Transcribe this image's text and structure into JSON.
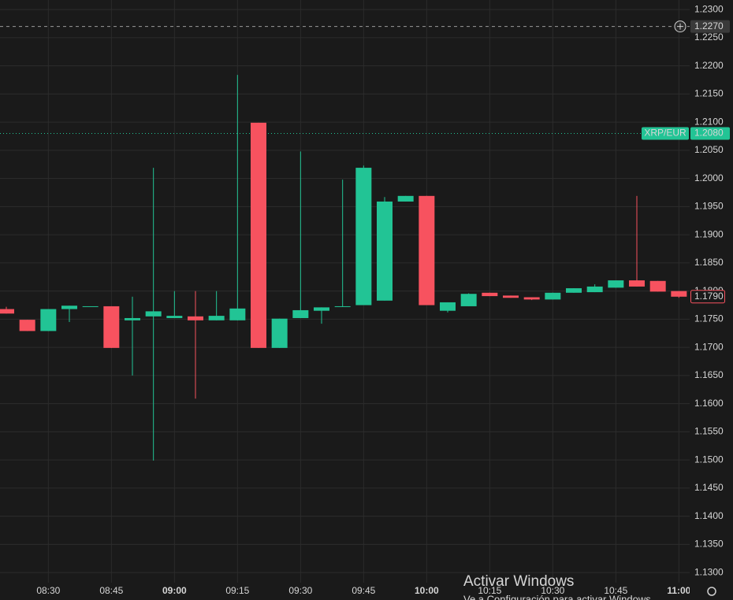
{
  "chart_data": {
    "type": "candlestick",
    "symbol": "XRP/EUR",
    "categories": [
      null,
      null,
      "08:30",
      null,
      null,
      "08:45",
      null,
      null,
      "09:00",
      null,
      null,
      "09:15",
      null,
      null,
      "09:30",
      null,
      null,
      "09:45",
      null,
      null,
      "10:00",
      null,
      null,
      "10:15",
      null,
      null,
      "10:30",
      null,
      null,
      "10:45",
      null,
      null,
      "11:00"
    ],
    "open": [
      1.1768,
      1.1749,
      1.1729,
      1.1768,
      1.1773,
      1.1773,
      1.1748,
      1.1755,
      1.1752,
      1.1755,
      1.1748,
      1.1748,
      1.2099,
      1.1699,
      1.1752,
      1.1765,
      1.1772,
      1.1775,
      1.1783,
      1.1959,
      1.1969,
      1.1765,
      1.1773,
      1.1797,
      1.1792,
      1.1789,
      1.1785,
      1.1797,
      1.1798,
      1.1806,
      1.1819,
      1.1818,
      1.18
    ],
    "high": [
      1.1772,
      1.1749,
      1.1768,
      1.1774,
      1.1773,
      1.1773,
      1.179,
      1.2019,
      1.18,
      1.18,
      1.18,
      1.2184,
      1.2099,
      1.1751,
      1.2048,
      1.1771,
      1.1998,
      1.2023,
      1.1967,
      1.1969,
      1.1969,
      1.178,
      1.1796,
      1.1797,
      1.1792,
      1.1789,
      1.1797,
      1.1805,
      1.1812,
      1.1819,
      1.1969,
      1.1818,
      1.18
    ],
    "low": [
      1.176,
      1.1729,
      1.1729,
      1.1745,
      1.1773,
      1.1699,
      1.165,
      1.1499,
      1.1752,
      1.1609,
      1.1748,
      1.1748,
      1.1699,
      1.1699,
      1.1752,
      1.1742,
      1.1772,
      1.1775,
      1.1783,
      1.1959,
      1.1775,
      1.1762,
      1.1773,
      1.1791,
      1.1788,
      1.1784,
      1.1785,
      1.1797,
      1.1798,
      1.1806,
      1.1808,
      1.1799,
      1.1788
    ],
    "close": [
      1.176,
      1.1729,
      1.1768,
      1.1774,
      1.1773,
      1.1699,
      1.1752,
      1.1764,
      1.1756,
      1.1748,
      1.1756,
      1.1769,
      1.1699,
      1.1751,
      1.1766,
      1.1771,
      1.1773,
      1.2019,
      1.1959,
      1.1969,
      1.1775,
      1.178,
      1.1795,
      1.1791,
      1.1788,
      1.1785,
      1.1797,
      1.1805,
      1.1808,
      1.1819,
      1.1808,
      1.1799,
      1.179
    ],
    "up_color": "#22c495",
    "down_color": "#f7525f",
    "ylim": [
      1.1282,
      1.2317
    ],
    "yticks": [
      {
        "value": 1.13,
        "label": "1.1300"
      },
      {
        "value": 1.135,
        "label": "1.1350"
      },
      {
        "value": 1.14,
        "label": "1.1400"
      },
      {
        "value": 1.145,
        "label": "1.1450"
      },
      {
        "value": 1.15,
        "label": "1.1500"
      },
      {
        "value": 1.155,
        "label": "1.1550"
      },
      {
        "value": 1.16,
        "label": "1.1600"
      },
      {
        "value": 1.165,
        "label": "1.1650"
      },
      {
        "value": 1.17,
        "label": "1.1700"
      },
      {
        "value": 1.175,
        "label": "1.1750"
      },
      {
        "value": 1.18,
        "label": "1.1800"
      },
      {
        "value": 1.185,
        "label": "1.1850"
      },
      {
        "value": 1.19,
        "label": "1.1900"
      },
      {
        "value": 1.195,
        "label": "1.1950"
      },
      {
        "value": 1.2,
        "label": "1.2000"
      },
      {
        "value": 1.205,
        "label": "1.2050"
      },
      {
        "value": 1.21,
        "label": "1.2100"
      },
      {
        "value": 1.215,
        "label": "1.2150"
      },
      {
        "value": 1.22,
        "label": "1.2200"
      },
      {
        "value": 1.225,
        "label": "1.2250"
      },
      {
        "value": 1.23,
        "label": "1.2300"
      }
    ],
    "grid": true,
    "last_price": {
      "value": 1.179,
      "label": "1.1790"
    },
    "reference_price": {
      "value": 1.208,
      "label": "1.2080"
    },
    "crosshair_price": {
      "value": 1.227,
      "label": "1.2270"
    },
    "watermark": [
      "Activar Windows",
      "Ve a Configuración para activar Windows."
    ]
  }
}
